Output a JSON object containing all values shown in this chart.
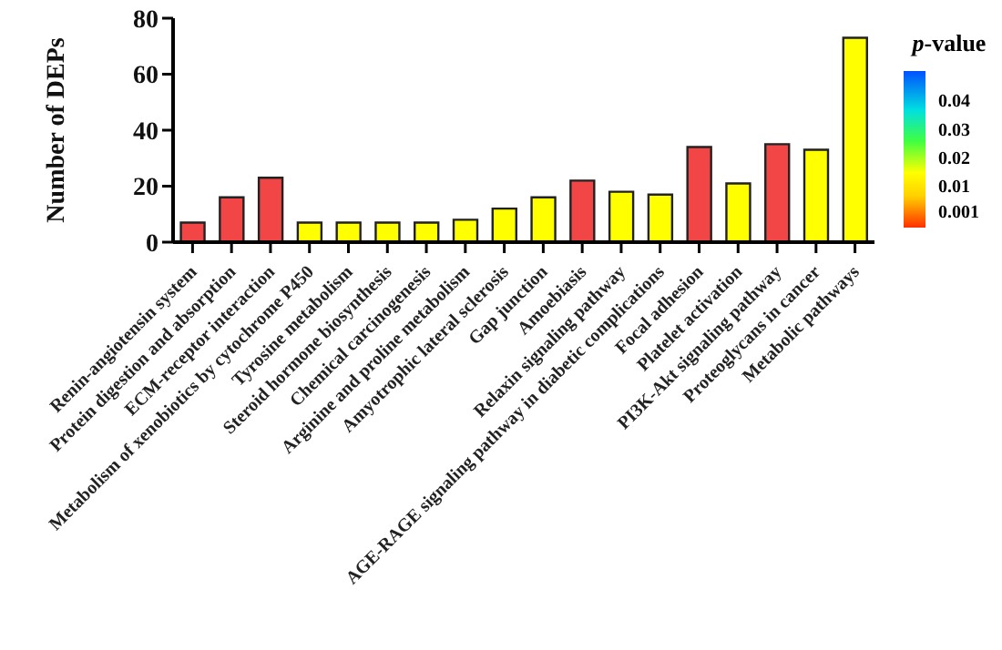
{
  "chart_data": {
    "type": "bar",
    "ylabel": "Number of DEPs",
    "clabel": "p-value",
    "clim": [
      -0.005,
      0.05
    ],
    "cticks": [
      0.001,
      0.01,
      0.02,
      0.03,
      0.04
    ],
    "categories": [
      "Renin-angiotensin system",
      "Protein digestion and absorption",
      "ECM-receptor interaction",
      "Metabolism of xenobiotics by cytochrome P450",
      "Tyrosine metabolism",
      "Steroid hormone biosynthesis",
      "Chemical carcinogenesis",
      "Arginine and proline metabolism",
      "Amyotrophic lateral sclerosis",
      "Gap junction",
      "Amoebiasis",
      "Relaxin signaling pathway",
      "AGE-RAGE signaling pathway in diabetic complications",
      "Focal adhesion",
      "Platelet activation",
      "PI3K-Akt signaling pathway",
      "Proteoglycans in cancer",
      "Metabolic pathways"
    ],
    "values": [
      7,
      16,
      23,
      7,
      7,
      7,
      7,
      8,
      12,
      16,
      22,
      18,
      17,
      34,
      21,
      35,
      33,
      73
    ],
    "colors": [
      "#f24545",
      "#f24545",
      "#f24545",
      "#ffff00",
      "#ffff00",
      "#ffff00",
      "#ffff00",
      "#ffff00",
      "#ffff00",
      "#ffff00",
      "#f24545",
      "#ffff00",
      "#ffff00",
      "#f24545",
      "#ffff00",
      "#f24545",
      "#ffff00",
      "#ffff00"
    ],
    "ylim": [
      0,
      80
    ],
    "yticks": [
      0,
      20,
      40,
      60,
      80
    ],
    "grid": false
  }
}
